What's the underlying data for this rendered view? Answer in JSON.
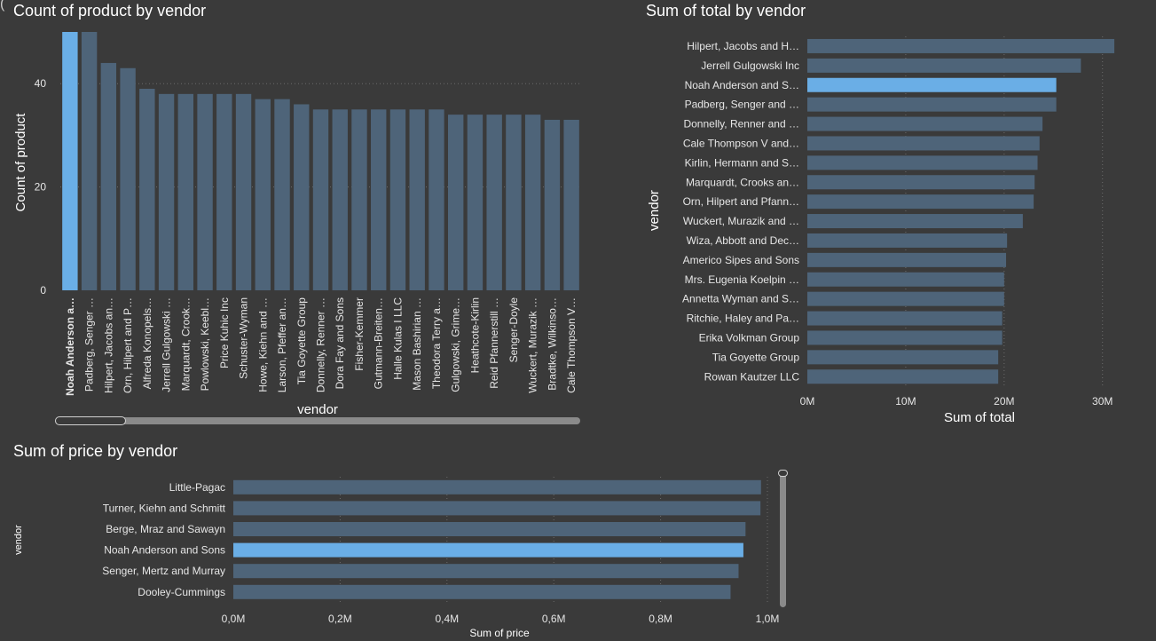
{
  "colors": {
    "background": "#3a3a3a",
    "bar": "#4e6479",
    "highlight": "#6aaee6",
    "grid": "#6b6b6b",
    "text": "#ffffff",
    "tick": "#e6e6e6"
  },
  "chart_data": [
    {
      "id": "count",
      "type": "bar",
      "title": "Count of product by vendor",
      "xlabel": "vendor",
      "ylabel": "Count of product",
      "ylim": [
        0,
        50
      ],
      "yticks": [
        "0",
        "20",
        "40"
      ],
      "highlight_index": 0,
      "categories": [
        "Noah Anderson a…",
        "Padberg, Senger …",
        "Hilpert, Jacobs an…",
        "Orn, Hilpert and P…",
        "Alfreda Konopels…",
        "Jerrell Gulgowski …",
        "Marquardt, Crook…",
        "Powlowski, Keebl…",
        "Price Kuhic Inc",
        "Schuster-Wyman",
        "Howe, Kiehn and …",
        "Larson, Pfeffer an…",
        "Tia Goyette Group",
        "Donnelly, Renner …",
        "Dora Fay and Sons",
        "Fisher-Kemmer",
        "Gutmann-Breiten…",
        "Halle Kulas I LLC",
        "Mason Bashirian …",
        "Theodora Terry a…",
        "Gulgowski, Grime…",
        "Heathcote-Kirlin",
        "Reid Pfannerstill …",
        "Senger-Doyle",
        "Wuckert, Murazik …",
        "Bradtke, Wilkinso…",
        "Cale Thompson V…"
      ],
      "values": [
        50,
        50,
        44,
        43,
        39,
        38,
        38,
        38,
        38,
        38,
        37,
        37,
        36,
        35,
        35,
        35,
        35,
        35,
        35,
        35,
        34,
        34,
        34,
        34,
        34,
        33,
        33
      ]
    },
    {
      "id": "total",
      "type": "bar",
      "orientation": "horizontal",
      "title": "Sum of total by vendor",
      "xlabel": "Sum of total",
      "ylabel": "vendor",
      "xlim": [
        0,
        33000000
      ],
      "xticks": [
        {
          "v": 0,
          "label": "0M"
        },
        {
          "v": 10000000,
          "label": "10M"
        },
        {
          "v": 20000000,
          "label": "20M"
        },
        {
          "v": 30000000,
          "label": "30M"
        }
      ],
      "highlight_index": 2,
      "categories": [
        "Hilpert, Jacobs and H…",
        "Jerrell Gulgowski Inc",
        "Noah Anderson and S…",
        "Padberg, Senger and …",
        "Donnelly, Renner and …",
        "Cale Thompson V and…",
        "Kirlin, Hermann and S…",
        "Marquardt, Crooks an…",
        "Orn, Hilpert and Pfann…",
        "Wuckert, Murazik and …",
        "Wiza, Abbott and Dec…",
        "Americo Sipes and Sons",
        "Mrs. Eugenia Koelpin …",
        "Annetta Wyman and S…",
        "Ritchie, Haley and Pa…",
        "Erika Volkman Group",
        "Tia Goyette Group",
        "Rowan Kautzer LLC"
      ],
      "values": [
        31200000,
        27800000,
        25300000,
        25300000,
        23900000,
        23600000,
        23400000,
        23100000,
        23000000,
        21900000,
        20300000,
        20200000,
        20000000,
        20000000,
        19800000,
        19800000,
        19400000,
        19400000
      ]
    },
    {
      "id": "price",
      "type": "bar",
      "orientation": "horizontal",
      "title": "Sum of price by vendor",
      "xlabel": "Sum of price",
      "ylabel": "vendor",
      "xlim": [
        0,
        1.0
      ],
      "xticks": [
        {
          "v": 0,
          "label": "0,0M"
        },
        {
          "v": 0.2,
          "label": "0,2M"
        },
        {
          "v": 0.4,
          "label": "0,4M"
        },
        {
          "v": 0.6,
          "label": "0,6M"
        },
        {
          "v": 0.8,
          "label": "0,8M"
        },
        {
          "v": 1.0,
          "label": "1,0M"
        }
      ],
      "highlight_index": 3,
      "categories": [
        "Little-Pagac",
        "Turner, Kiehn and Schmitt",
        "Berge, Mraz and Sawayn",
        "Noah Anderson and Sons",
        "Senger, Mertz and Murray",
        "Dooley-Cummings"
      ],
      "values": [
        0.988,
        0.987,
        0.959,
        0.955,
        0.946,
        0.931
      ]
    }
  ]
}
